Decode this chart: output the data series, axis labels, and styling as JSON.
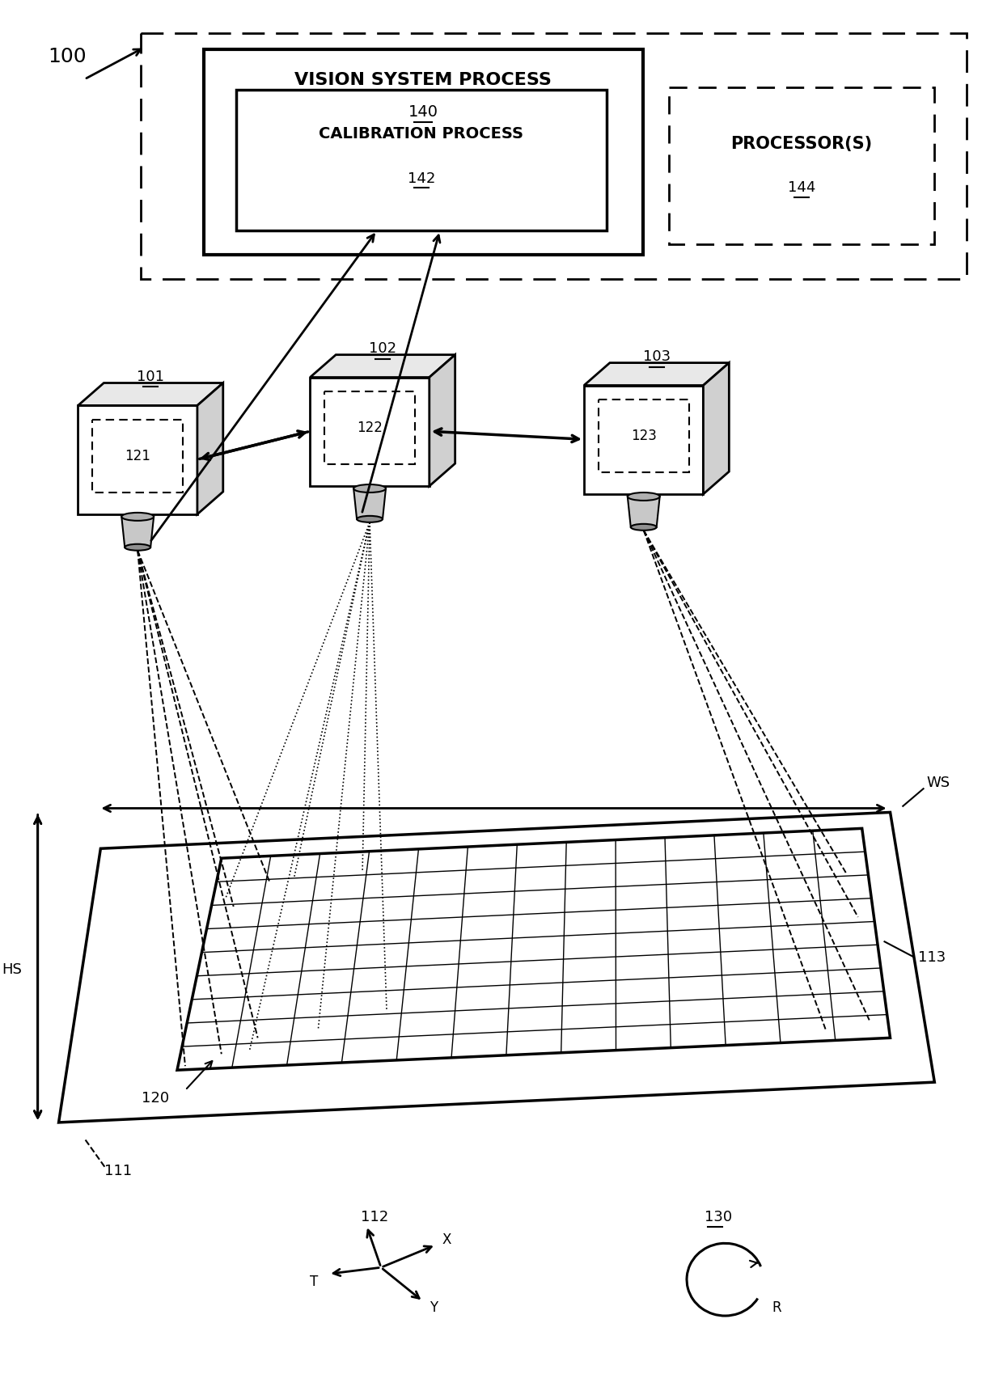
{
  "bg_color": "#ffffff",
  "label_100": "100",
  "label_140": "140",
  "label_142": "142",
  "label_144": "144",
  "label_101": "101",
  "label_102": "102",
  "label_103": "103",
  "label_121": "121",
  "label_122": "122",
  "label_123": "123",
  "label_111": "111",
  "label_112": "112",
  "label_113": "113",
  "label_120": "120",
  "label_130": "130",
  "label_HS": "HS",
  "label_WS": "WS",
  "label_T": "T",
  "label_X": "X",
  "label_Y": "Y",
  "label_R": "R",
  "text_vision": "VISION SYSTEM PROCESS",
  "text_calibration": "CALIBRATION PROCESS",
  "text_processor": "PROCESSOR(S)"
}
